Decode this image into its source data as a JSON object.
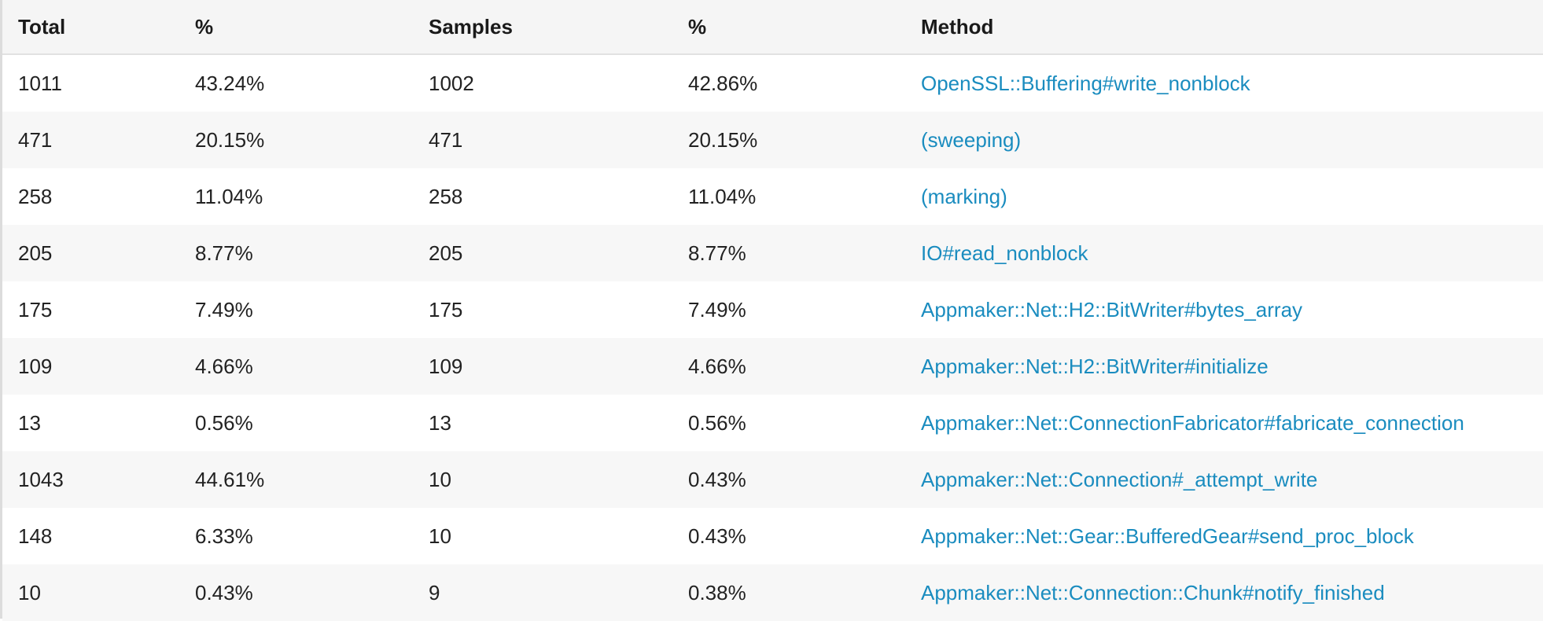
{
  "colors": {
    "link": "#1a8cbf",
    "header_bg": "#f5f5f5",
    "stripe_bg": "#f7f7f7"
  },
  "table": {
    "headers": {
      "total": "Total",
      "total_pct": "%",
      "samples": "Samples",
      "samples_pct": "%",
      "method": "Method"
    },
    "rows": [
      {
        "total": "1011",
        "total_pct": "43.24%",
        "samples": "1002",
        "samples_pct": "42.86%",
        "method": "OpenSSL::Buffering#write_nonblock"
      },
      {
        "total": "471",
        "total_pct": "20.15%",
        "samples": "471",
        "samples_pct": "20.15%",
        "method": "(sweeping)"
      },
      {
        "total": "258",
        "total_pct": "11.04%",
        "samples": "258",
        "samples_pct": "11.04%",
        "method": "(marking)"
      },
      {
        "total": "205",
        "total_pct": "8.77%",
        "samples": "205",
        "samples_pct": "8.77%",
        "method": "IO#read_nonblock"
      },
      {
        "total": "175",
        "total_pct": "7.49%",
        "samples": "175",
        "samples_pct": "7.49%",
        "method": "Appmaker::Net::H2::BitWriter#bytes_array"
      },
      {
        "total": "109",
        "total_pct": "4.66%",
        "samples": "109",
        "samples_pct": "4.66%",
        "method": "Appmaker::Net::H2::BitWriter#initialize"
      },
      {
        "total": "13",
        "total_pct": "0.56%",
        "samples": "13",
        "samples_pct": "0.56%",
        "method": "Appmaker::Net::ConnectionFabricator#fabricate_connection"
      },
      {
        "total": "1043",
        "total_pct": "44.61%",
        "samples": "10",
        "samples_pct": "0.43%",
        "method": "Appmaker::Net::Connection#_attempt_write"
      },
      {
        "total": "148",
        "total_pct": "6.33%",
        "samples": "10",
        "samples_pct": "0.43%",
        "method": "Appmaker::Net::Gear::BufferedGear#send_proc_block"
      },
      {
        "total": "10",
        "total_pct": "0.43%",
        "samples": "9",
        "samples_pct": "0.38%",
        "method": "Appmaker::Net::Connection::Chunk#notify_finished"
      }
    ]
  }
}
